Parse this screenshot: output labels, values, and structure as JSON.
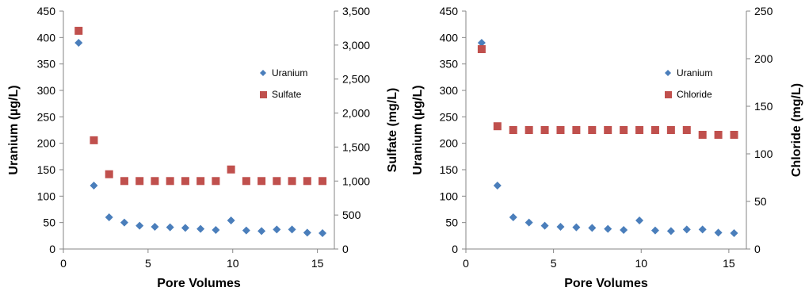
{
  "chart_data": [
    {
      "type": "scatter",
      "xlabel": "Pore Volumes",
      "ylabel": "Uranium (µg/L)",
      "y2label": "Sulfate (mg/L)",
      "xlim": [
        0,
        16
      ],
      "xticks": [
        "0",
        "5",
        "10",
        "15"
      ],
      "ylim": [
        0,
        450
      ],
      "yticks": [
        "0",
        "50",
        "100",
        "150",
        "200",
        "250",
        "300",
        "350",
        "400",
        "450"
      ],
      "y2lim": [
        0,
        3500
      ],
      "y2ticks": [
        "0",
        "500",
        "1,000",
        "1,500",
        "2,000",
        "2,500",
        "3,000",
        "3,500"
      ],
      "grid": false,
      "legend_position": "right-middle",
      "series": [
        {
          "name": "Uranium",
          "axis": "left",
          "marker": "diamond",
          "color": "#4a7ebb",
          "x": [
            0.9,
            1.8,
            2.7,
            3.6,
            4.5,
            5.4,
            6.3,
            7.2,
            8.1,
            9.0,
            9.9,
            10.8,
            11.7,
            12.6,
            13.5,
            14.4,
            15.3
          ],
          "y": [
            390,
            120,
            60,
            50,
            44,
            42,
            41,
            40,
            38,
            36,
            54,
            35,
            34,
            37,
            37,
            31,
            30
          ]
        },
        {
          "name": "Sulfate",
          "axis": "right",
          "marker": "square",
          "color": "#c0504d",
          "x": [
            0.9,
            1.8,
            2.7,
            3.6,
            4.5,
            5.4,
            6.3,
            7.2,
            8.1,
            9.0,
            9.9,
            10.8,
            11.7,
            12.6,
            13.5,
            14.4,
            15.3
          ],
          "y": [
            3210,
            1600,
            1100,
            1000,
            1000,
            1000,
            1000,
            1000,
            1000,
            1000,
            1170,
            1000,
            1000,
            1000,
            1000,
            1000,
            1000
          ]
        }
      ]
    },
    {
      "type": "scatter",
      "xlabel": "Pore Volumes",
      "ylabel": "Uranium (µg/L)",
      "y2label": "Chloride (mg/L)",
      "xlim": [
        0,
        16
      ],
      "xticks": [
        "0",
        "5",
        "10",
        "15"
      ],
      "ylim": [
        0,
        450
      ],
      "yticks": [
        "0",
        "50",
        "100",
        "150",
        "200",
        "250",
        "300",
        "350",
        "400",
        "450"
      ],
      "y2lim": [
        0,
        250
      ],
      "y2ticks": [
        "0",
        "50",
        "100",
        "150",
        "200",
        "250"
      ],
      "grid": false,
      "legend_position": "right-middle",
      "series": [
        {
          "name": "Uranium",
          "axis": "left",
          "marker": "diamond",
          "color": "#4a7ebb",
          "x": [
            0.9,
            1.8,
            2.7,
            3.6,
            4.5,
            5.4,
            6.3,
            7.2,
            8.1,
            9.0,
            9.9,
            10.8,
            11.7,
            12.6,
            13.5,
            14.4,
            15.3
          ],
          "y": [
            390,
            120,
            60,
            50,
            44,
            42,
            41,
            40,
            38,
            36,
            54,
            35,
            34,
            37,
            37,
            31,
            30
          ]
        },
        {
          "name": "Chloride",
          "axis": "right",
          "marker": "square",
          "color": "#c0504d",
          "x": [
            0.9,
            1.8,
            2.7,
            3.6,
            4.5,
            5.4,
            6.3,
            7.2,
            8.1,
            9.0,
            9.9,
            10.8,
            11.7,
            12.6,
            13.5,
            14.4,
            15.3
          ],
          "y": [
            210,
            129,
            125,
            125,
            125,
            125,
            125,
            125,
            125,
            125,
            125,
            125,
            125,
            125,
            120,
            120,
            120
          ]
        }
      ]
    }
  ]
}
